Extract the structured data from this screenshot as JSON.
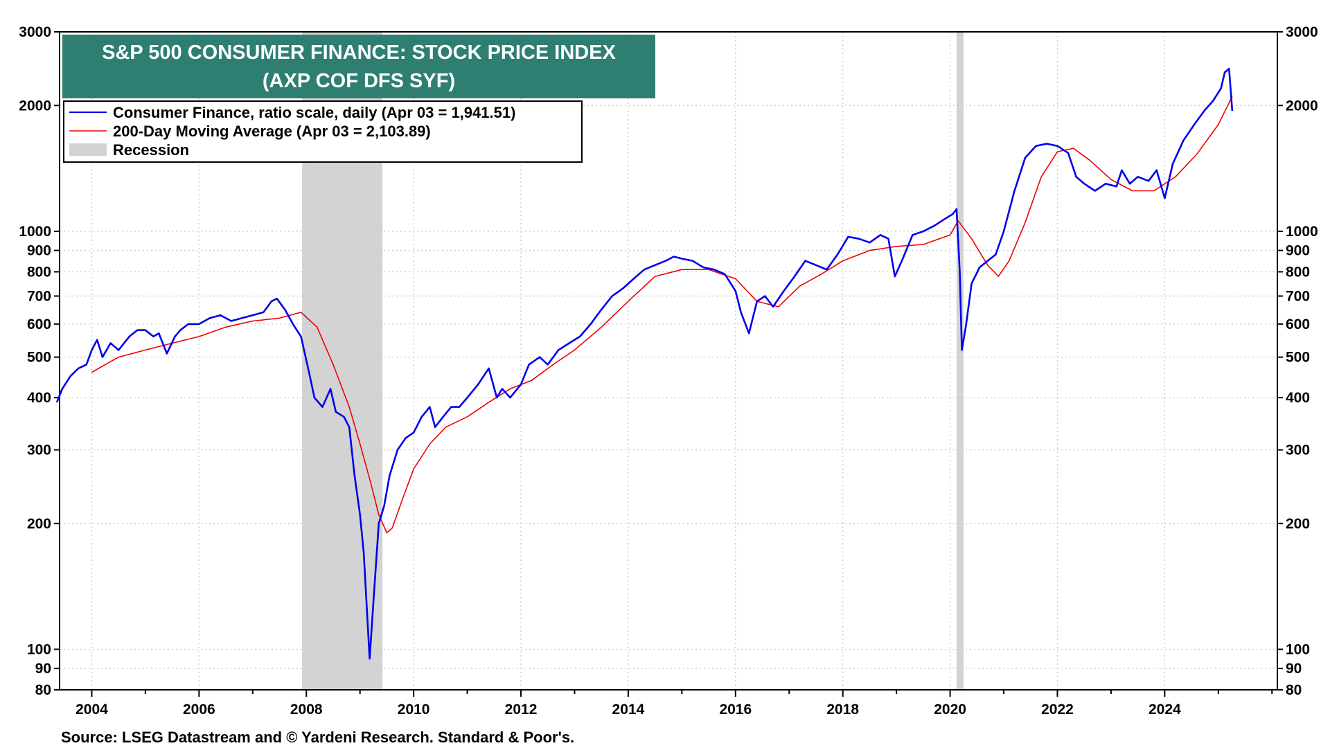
{
  "chart_data": {
    "type": "line",
    "title": "S&P 500 CONSUMER FINANCE: STOCK PRICE INDEX",
    "subtitle": "(AXP COF DFS SYF)",
    "yscale": "log",
    "ylim": [
      80,
      3000
    ],
    "xlim": [
      2003.4,
      2026.1
    ],
    "y_ticks": [
      80,
      90,
      100,
      200,
      300,
      400,
      500,
      600,
      700,
      800,
      900,
      1000,
      2000,
      3000
    ],
    "y_tick_labels": [
      "80",
      "90",
      "100",
      "200",
      "300",
      "400",
      "500",
      "600",
      "700",
      "800",
      "900",
      "1000",
      "2000",
      "3000"
    ],
    "x_ticks": [
      2004,
      2006,
      2008,
      2010,
      2012,
      2014,
      2016,
      2018,
      2020,
      2022,
      2024
    ],
    "x_tick_labels": [
      "2004",
      "2006",
      "2008",
      "2010",
      "2012",
      "2014",
      "2016",
      "2018",
      "2020",
      "2022",
      "2024"
    ],
    "grid": true,
    "legend_position": "top-left",
    "recessions": [
      {
        "start": 2007.92,
        "end": 2009.42
      },
      {
        "start": 2020.12,
        "end": 2020.25
      }
    ],
    "legend": [
      {
        "label": "Consumer Finance, ratio scale, daily (Apr 03 = 1,941.51)",
        "color": "#0000ee",
        "kind": "line"
      },
      {
        "label": "200-Day Moving Average (Apr 03 = 2,103.89)",
        "color": "#ee0000",
        "kind": "line"
      },
      {
        "label": "Recession",
        "color": "#d3d3d3",
        "kind": "box"
      }
    ],
    "source": "Source: LSEG Datastream and © Yardeni Research. Standard & Poor's.",
    "series": [
      {
        "name": "Consumer Finance, ratio scale, daily",
        "color": "#0000ee",
        "x": [
          2003.35,
          2003.45,
          2003.6,
          2003.75,
          2003.9,
          2004.0,
          2004.1,
          2004.2,
          2004.35,
          2004.5,
          2004.7,
          2004.85,
          2005.0,
          2005.15,
          2005.25,
          2005.4,
          2005.55,
          2005.65,
          2005.8,
          2006.0,
          2006.2,
          2006.4,
          2006.6,
          2006.8,
          2007.0,
          2007.2,
          2007.35,
          2007.45,
          2007.6,
          2007.75,
          2007.9,
          2008.05,
          2008.15,
          2008.3,
          2008.45,
          2008.55,
          2008.7,
          2008.8,
          2008.9,
          2009.0,
          2009.07,
          2009.12,
          2009.18,
          2009.25,
          2009.35,
          2009.45,
          2009.55,
          2009.7,
          2009.85,
          2010.0,
          2010.15,
          2010.3,
          2010.4,
          2010.55,
          2010.7,
          2010.85,
          2011.0,
          2011.2,
          2011.4,
          2011.55,
          2011.65,
          2011.8,
          2012.0,
          2012.15,
          2012.35,
          2012.5,
          2012.7,
          2012.9,
          2013.1,
          2013.3,
          2013.5,
          2013.7,
          2013.9,
          2014.1,
          2014.3,
          2014.5,
          2014.7,
          2014.85,
          2015.0,
          2015.2,
          2015.4,
          2015.6,
          2015.8,
          2016.0,
          2016.1,
          2016.25,
          2016.4,
          2016.55,
          2016.7,
          2016.9,
          2017.1,
          2017.3,
          2017.5,
          2017.7,
          2017.9,
          2018.1,
          2018.3,
          2018.5,
          2018.7,
          2018.85,
          2018.97,
          2019.1,
          2019.3,
          2019.5,
          2019.7,
          2019.9,
          2020.05,
          2020.12,
          2020.18,
          2020.22,
          2020.3,
          2020.4,
          2020.55,
          2020.7,
          2020.85,
          2021.0,
          2021.2,
          2021.4,
          2021.6,
          2021.8,
          2022.0,
          2022.2,
          2022.35,
          2022.5,
          2022.7,
          2022.9,
          2023.1,
          2023.2,
          2023.35,
          2023.5,
          2023.7,
          2023.85,
          2024.0,
          2024.15,
          2024.35,
          2024.55,
          2024.75,
          2024.9,
          2025.05,
          2025.12,
          2025.2,
          2025.26
        ],
        "y": [
          390,
          420,
          450,
          470,
          480,
          520,
          550,
          500,
          540,
          520,
          560,
          580,
          580,
          560,
          570,
          510,
          560,
          580,
          600,
          600,
          620,
          630,
          610,
          620,
          630,
          640,
          680,
          690,
          650,
          600,
          560,
          460,
          400,
          380,
          420,
          370,
          360,
          340,
          260,
          210,
          170,
          130,
          95,
          130,
          200,
          220,
          260,
          300,
          320,
          330,
          360,
          380,
          340,
          360,
          380,
          380,
          400,
          430,
          470,
          400,
          420,
          400,
          430,
          480,
          500,
          480,
          520,
          540,
          560,
          600,
          650,
          700,
          730,
          770,
          810,
          830,
          850,
          870,
          860,
          850,
          820,
          810,
          790,
          720,
          640,
          570,
          680,
          700,
          660,
          720,
          780,
          850,
          830,
          810,
          880,
          970,
          960,
          940,
          980,
          960,
          780,
          850,
          980,
          1000,
          1030,
          1070,
          1100,
          1130,
          800,
          520,
          600,
          750,
          820,
          850,
          880,
          1000,
          1250,
          1500,
          1600,
          1620,
          1600,
          1540,
          1350,
          1300,
          1250,
          1300,
          1280,
          1400,
          1300,
          1350,
          1320,
          1400,
          1200,
          1450,
          1650,
          1800,
          1950,
          2050,
          2200,
          2400,
          2450,
          1941.51
        ]
      },
      {
        "name": "200-Day Moving Average",
        "color": "#ee0000",
        "x": [
          2004.0,
          2004.5,
          2005.0,
          2005.5,
          2006.0,
          2006.5,
          2007.0,
          2007.5,
          2007.9,
          2008.2,
          2008.5,
          2008.8,
          2009.0,
          2009.2,
          2009.35,
          2009.5,
          2009.6,
          2009.8,
          2010.0,
          2010.3,
          2010.6,
          2011.0,
          2011.4,
          2011.8,
          2012.2,
          2012.6,
          2013.0,
          2013.5,
          2014.0,
          2014.5,
          2015.0,
          2015.5,
          2016.0,
          2016.4,
          2016.8,
          2017.2,
          2017.6,
          2018.0,
          2018.5,
          2019.0,
          2019.5,
          2020.0,
          2020.15,
          2020.4,
          2020.7,
          2020.9,
          2021.1,
          2021.4,
          2021.7,
          2022.0,
          2022.3,
          2022.6,
          2023.0,
          2023.4,
          2023.8,
          2024.2,
          2024.6,
          2025.0,
          2025.26
        ],
        "y": [
          460,
          500,
          520,
          540,
          560,
          590,
          610,
          620,
          640,
          590,
          480,
          380,
          310,
          250,
          210,
          190,
          195,
          230,
          270,
          310,
          340,
          360,
          390,
          420,
          440,
          480,
          520,
          590,
          680,
          780,
          810,
          810,
          770,
          680,
          660,
          740,
          790,
          850,
          900,
          920,
          930,
          980,
          1060,
          960,
          830,
          780,
          850,
          1050,
          1350,
          1550,
          1580,
          1480,
          1330,
          1250,
          1250,
          1350,
          1530,
          1800,
          2103.89
        ]
      }
    ]
  }
}
